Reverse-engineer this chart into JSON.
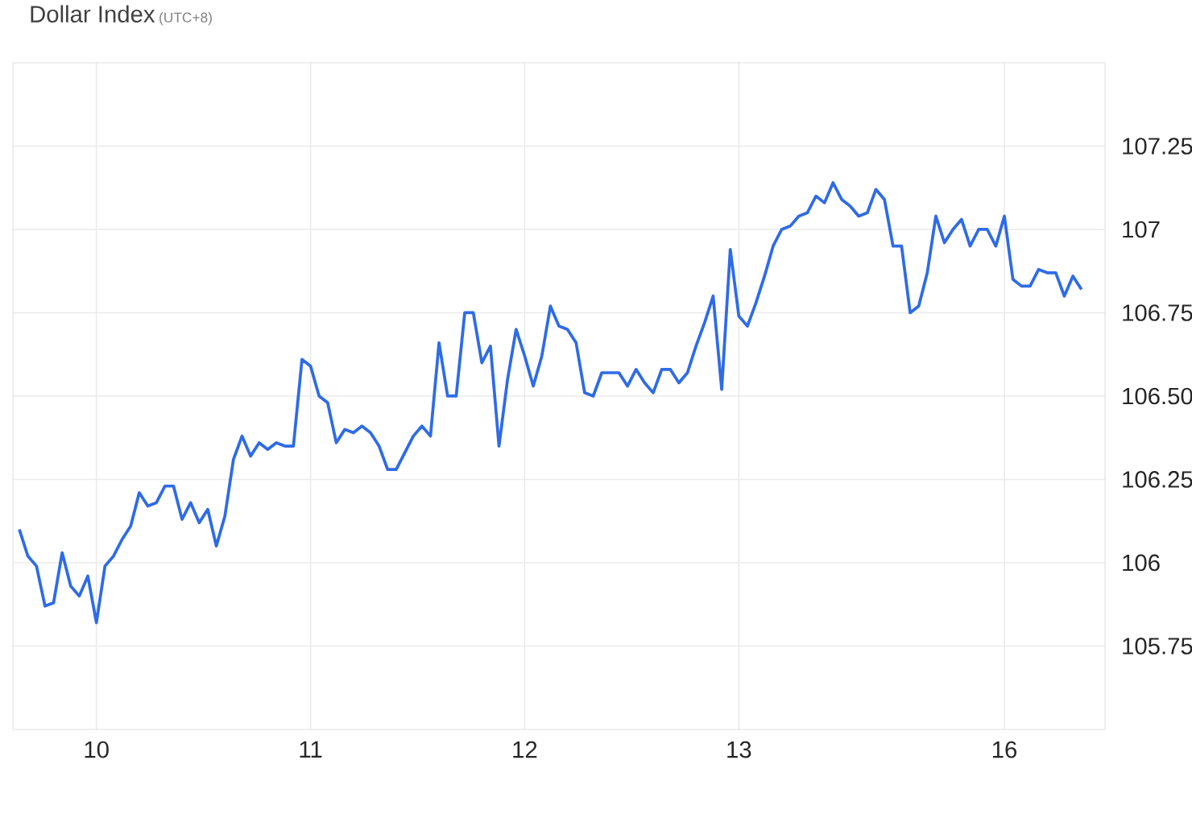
{
  "chart_data": {
    "type": "line",
    "title": "Dollar Index",
    "subtitle": "(UTC+8)",
    "categories": [
      null,
      null,
      null,
      null,
      null,
      null,
      null,
      null,
      null,
      "10",
      null,
      null,
      null,
      null,
      null,
      null,
      null,
      null,
      null,
      null,
      null,
      null,
      null,
      null,
      null,
      null,
      null,
      null,
      null,
      null,
      null,
      null,
      null,
      null,
      "11",
      null,
      null,
      null,
      null,
      null,
      null,
      null,
      null,
      null,
      null,
      null,
      null,
      null,
      null,
      null,
      null,
      null,
      null,
      null,
      null,
      null,
      null,
      null,
      null,
      "12",
      null,
      null,
      null,
      null,
      null,
      null,
      null,
      null,
      null,
      null,
      null,
      null,
      null,
      null,
      null,
      null,
      null,
      null,
      null,
      null,
      null,
      null,
      null,
      null,
      "13",
      null,
      null,
      null,
      null,
      null,
      null,
      null,
      null,
      null,
      null,
      null,
      null,
      null,
      null,
      null,
      null,
      null,
      null,
      null,
      null,
      null,
      null,
      null,
      null,
      null,
      null,
      null,
      null,
      null,
      null,
      "16",
      null,
      null,
      null,
      null,
      null,
      null,
      null,
      null,
      null
    ],
    "ylim": [
      105.5,
      107.5
    ],
    "yticks": [
      105.75,
      106,
      106.25,
      {
        "value": 106.5,
        "label": "106.50"
      },
      106.75,
      107,
      107.25
    ],
    "grid": true,
    "series": [
      {
        "color": "#2e6be6",
        "values": [
          106.1,
          106.02,
          105.99,
          105.87,
          105.88,
          106.03,
          105.93,
          105.9,
          105.96,
          105.82,
          105.99,
          106.02,
          106.07,
          106.11,
          106.21,
          106.17,
          106.18,
          106.23,
          106.23,
          106.13,
          106.18,
          106.12,
          106.16,
          106.05,
          106.14,
          106.31,
          106.38,
          106.32,
          106.36,
          106.34,
          106.36,
          106.35,
          106.35,
          106.61,
          106.59,
          106.5,
          106.48,
          106.36,
          106.4,
          106.39,
          106.41,
          106.39,
          106.35,
          106.28,
          106.28,
          106.33,
          106.38,
          106.41,
          106.38,
          106.66,
          106.5,
          106.5,
          106.75,
          106.75,
          106.6,
          106.65,
          106.35,
          106.55,
          106.7,
          106.62,
          106.53,
          106.62,
          106.77,
          106.71,
          106.7,
          106.66,
          106.51,
          106.5,
          106.57,
          106.57,
          106.57,
          106.53,
          106.58,
          106.54,
          106.51,
          106.58,
          106.58,
          106.54,
          106.57,
          106.65,
          106.72,
          106.8,
          106.52,
          106.94,
          106.74,
          106.71,
          106.78,
          106.86,
          106.95,
          107.0,
          107.01,
          107.04,
          107.05,
          107.1,
          107.08,
          107.14,
          107.09,
          107.07,
          107.04,
          107.05,
          107.12,
          107.09,
          106.95,
          106.95,
          106.75,
          106.77,
          106.87,
          107.04,
          106.96,
          107.0,
          107.03,
          106.95,
          107.0,
          107.0,
          106.95,
          107.04,
          106.85,
          106.83,
          106.83,
          106.88,
          106.87,
          106.87,
          106.8,
          106.86,
          106.82
        ]
      }
    ]
  }
}
